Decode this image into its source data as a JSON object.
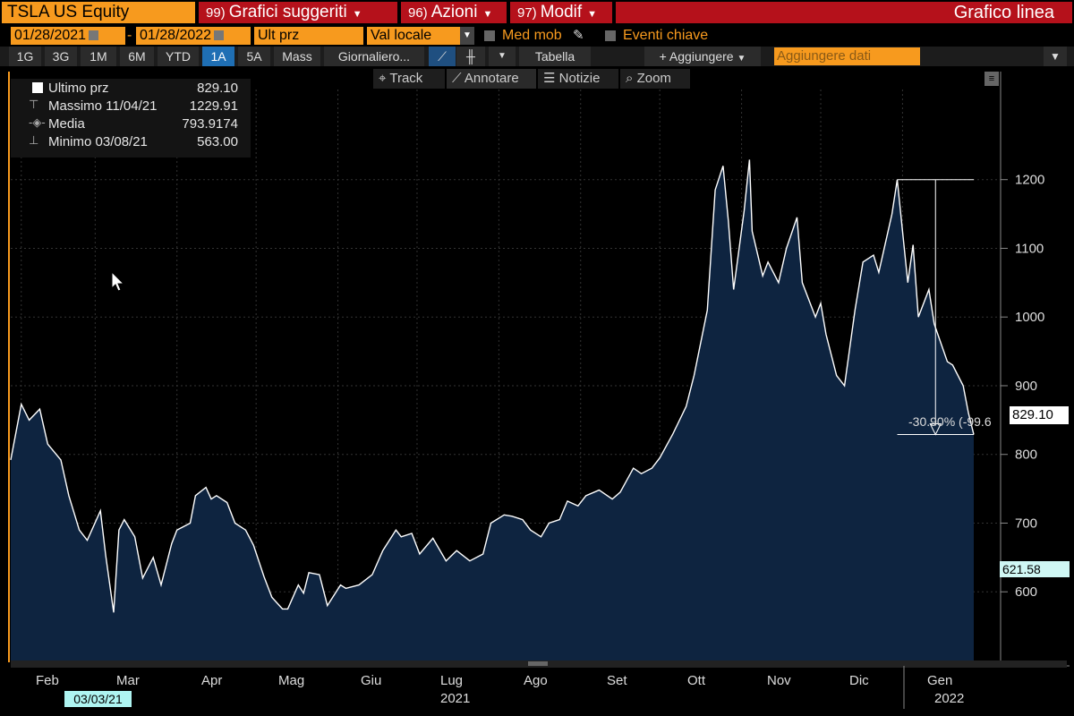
{
  "header": {
    "ticker": "TSLA US Equity",
    "menu1_num": "99)",
    "menu1_label": "Grafici suggeriti",
    "menu2_num": "96)",
    "menu2_label": "Azioni",
    "menu3_num": "97)",
    "menu3_label": "Modif",
    "chart_title": "Grafico linea"
  },
  "controls": {
    "start_date": "01/28/2021",
    "date_separator": "-",
    "end_date": "01/28/2022",
    "field": "Ult prz",
    "currency": "Val locale",
    "moving_avg_label": "Med mob",
    "events_label": "Eventi chiave"
  },
  "periods": [
    "1G",
    "3G",
    "1M",
    "6M",
    "YTD",
    "1A",
    "5A",
    "Mass"
  ],
  "active_period": "1A",
  "toolbar": {
    "frequency": "Giornaliero...",
    "table_label": "Tabella",
    "add_label": "+ Aggiungere",
    "add_data_placeholder": "Aggiungere dati"
  },
  "tools": {
    "track": "Track",
    "annotate": "Annotare",
    "news": "Notizie",
    "zoom": "Zoom"
  },
  "legend": {
    "last_label": "Ultimo prz",
    "last_value": "829.10",
    "max_label": "Massimo 11/04/21",
    "max_value": "1229.91",
    "avg_label": "Media",
    "avg_value": "793.9174",
    "min_label": "Minimo 03/08/21",
    "min_value": "563.00"
  },
  "price_tag": "829.10",
  "crosshair_tag": "621.58",
  "cursor_date": "03/03/21",
  "annotation_text": "-30.90% (-99.6",
  "colors": {
    "orange": "#f79a1e",
    "red": "#b5111b",
    "area": "#0e2440",
    "line": "#ffffff",
    "cyan": "#aef4f1"
  },
  "chart_data": {
    "type": "area",
    "ylim": [
      500,
      1240
    ],
    "yticks": [
      600,
      700,
      800,
      900,
      1000,
      1100,
      1200
    ],
    "months": [
      "Feb",
      "Mar",
      "Apr",
      "Mag",
      "Giu",
      "Lug",
      "Ago",
      "Set",
      "Ott",
      "Nov",
      "Dic",
      "Gen"
    ],
    "years": [
      "2021",
      "2022"
    ],
    "x": [
      "2021-01-28",
      "2021-02-01",
      "2021-02-04",
      "2021-02-08",
      "2021-02-11",
      "2021-02-16",
      "2021-02-19",
      "2021-02-23",
      "2021-02-26",
      "2021-03-03",
      "2021-03-05",
      "2021-03-08",
      "2021-03-10",
      "2021-03-12",
      "2021-03-16",
      "2021-03-19",
      "2021-03-23",
      "2021-03-26",
      "2021-03-30",
      "2021-04-01",
      "2021-04-06",
      "2021-04-08",
      "2021-04-12",
      "2021-04-14",
      "2021-04-16",
      "2021-04-20",
      "2021-04-23",
      "2021-04-27",
      "2021-04-30",
      "2021-05-04",
      "2021-05-07",
      "2021-05-11",
      "2021-05-13",
      "2021-05-17",
      "2021-05-19",
      "2021-05-21",
      "2021-05-25",
      "2021-05-28",
      "2021-06-02",
      "2021-06-04",
      "2021-06-09",
      "2021-06-14",
      "2021-06-18",
      "2021-06-23",
      "2021-06-25",
      "2021-06-29",
      "2021-07-02",
      "2021-07-07",
      "2021-07-12",
      "2021-07-16",
      "2021-07-21",
      "2021-07-26",
      "2021-07-29",
      "2021-08-03",
      "2021-08-06",
      "2021-08-10",
      "2021-08-13",
      "2021-08-17",
      "2021-08-20",
      "2021-08-24",
      "2021-08-27",
      "2021-08-31",
      "2021-09-03",
      "2021-09-08",
      "2021-09-13",
      "2021-09-16",
      "2021-09-21",
      "2021-09-24",
      "2021-09-28",
      "2021-10-01",
      "2021-10-06",
      "2021-10-11",
      "2021-10-14",
      "2021-10-19",
      "2021-10-22",
      "2021-10-25",
      "2021-10-27",
      "2021-10-29",
      "2021-11-02",
      "2021-11-04",
      "2021-11-05",
      "2021-11-09",
      "2021-11-11",
      "2021-11-15",
      "2021-11-18",
      "2021-11-22",
      "2021-11-24",
      "2021-11-29",
      "2021-12-01",
      "2021-12-03",
      "2021-12-07",
      "2021-12-10",
      "2021-12-14",
      "2021-12-17",
      "2021-12-21",
      "2021-12-23",
      "2021-12-28",
      "2021-12-30",
      "2022-01-03",
      "2022-01-05",
      "2022-01-07",
      "2022-01-11",
      "2022-01-13",
      "2022-01-18",
      "2022-01-20",
      "2022-01-24",
      "2022-01-26",
      "2022-01-28"
    ],
    "y": [
      792,
      873,
      850,
      866,
      815,
      792,
      740,
      690,
      675,
      718,
      653,
      570,
      690,
      705,
      680,
      620,
      650,
      610,
      670,
      690,
      700,
      740,
      752,
      735,
      740,
      730,
      700,
      690,
      668,
      622,
      592,
      575,
      575,
      610,
      598,
      628,
      625,
      580,
      610,
      605,
      610,
      625,
      660,
      690,
      680,
      685,
      655,
      678,
      645,
      660,
      645,
      655,
      700,
      712,
      710,
      705,
      690,
      680,
      700,
      705,
      732,
      725,
      740,
      748,
      735,
      745,
      780,
      772,
      780,
      795,
      830,
      870,
      915,
      1010,
      1185,
      1220,
      1140,
      1040,
      1155,
      1229,
      1125,
      1060,
      1080,
      1050,
      1100,
      1145,
      1050,
      1000,
      1020,
      975,
      915,
      900,
      1010,
      1080,
      1090,
      1065,
      1150,
      1200,
      1050,
      1105,
      1000,
      1040,
      990,
      935,
      930,
      900,
      860,
      829
    ]
  }
}
